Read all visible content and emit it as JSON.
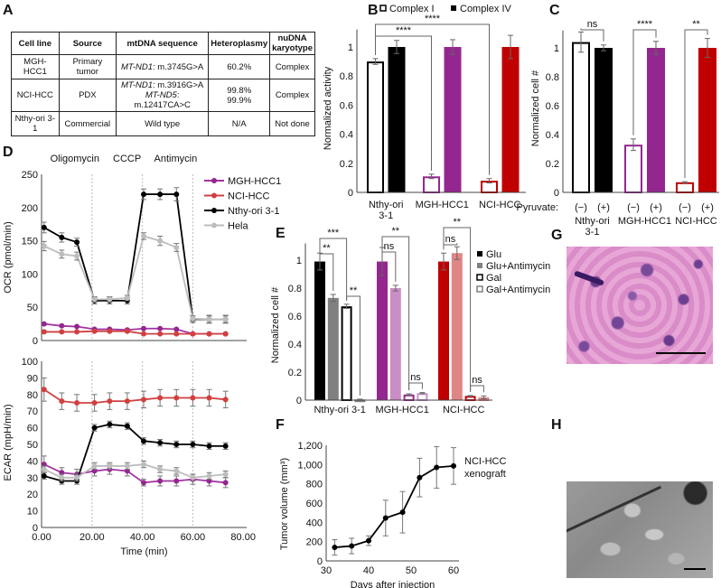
{
  "panels": [
    "A",
    "B",
    "C",
    "D",
    "E",
    "F",
    "G",
    "H"
  ],
  "table": {
    "headers": [
      "Cell line",
      "Source",
      "mtDNA sequence",
      "Heteroplasmy",
      "nuDNA karyotype"
    ],
    "rows": [
      {
        "cell_line": "MGH-HCC1",
        "source": "Primary tumor",
        "gene1": "MT-ND1",
        "mut1": ": m.3745G>A",
        "gene2": "",
        "mut2": "",
        "het1": "60.2%",
        "het2": "",
        "karyotype": "Complex"
      },
      {
        "cell_line": "NCI-HCC",
        "source": "PDX",
        "gene1": "MT-ND1",
        "mut1": ": m.3916G>A",
        "gene2": "MT-ND5",
        "mut2": ": m.12417CA>C",
        "het1": "99.8%",
        "het2": "99.9%",
        "karyotype": "Complex"
      },
      {
        "cell_line": "Nthy-ori 3-1",
        "source": "Commercial",
        "gene1": "",
        "mut1": "Wild type",
        "gene2": "",
        "mut2": "",
        "het1": "N/A",
        "het2": "",
        "karyotype": "Not done"
      }
    ]
  },
  "colors": {
    "black": "#000000",
    "gray": "#808080",
    "purple": "#93278f",
    "light_purple": "#c98ec6",
    "red": "#c00000",
    "pink": "#e08585",
    "hela": "#bdbdbd",
    "mgh_line": "#a333a0",
    "nci_line": "#d04040",
    "error": "#666666"
  },
  "images": {
    "G": "H&E histology",
    "H": "electron micrograph"
  },
  "chart_data": [
    {
      "id": "B",
      "type": "bar",
      "ylabel": "Normalized activity",
      "ylim": [
        0,
        1.12
      ],
      "yticks": [
        0,
        0.2,
        0.4,
        0.6,
        0.8,
        1
      ],
      "ytick_labels": [
        "0",
        "0.2",
        "0.4",
        "0.6",
        "0.8",
        "1"
      ],
      "categories": [
        "Nthy-ori 3-1",
        "MGH-HCC1",
        "NCI-HCC"
      ],
      "series": [
        {
          "name": "Complex I",
          "values": [
            0.9,
            0.11,
            0.08
          ],
          "errors": [
            0.02,
            0.015,
            0.015
          ]
        },
        {
          "name": "Complex IV",
          "values": [
            1.0,
            1.0,
            1.0
          ],
          "errors": [
            0.045,
            0.05,
            0.08
          ]
        }
      ],
      "legend": "top",
      "annotations": [
        {
          "label": "****",
          "a": [
            0,
            0
          ],
          "b": [
            2,
            0
          ]
        },
        {
          "label": "****",
          "a": [
            0,
            0
          ],
          "b": [
            1,
            0
          ]
        }
      ]
    },
    {
      "id": "C",
      "type": "bar",
      "ylabel": "Normalized cell #",
      "ylim": [
        0,
        1.12
      ],
      "yticks": [
        0,
        0.2,
        0.4,
        0.6,
        0.8,
        1
      ],
      "ytick_labels": [
        "0",
        "0.2",
        "0.4",
        "0.6",
        "0.8",
        "1"
      ],
      "xlabel_prefix": "Pyruvate:",
      "categories": [
        "Nthy-ori 3-1",
        "MGH-HCC1",
        "NCI-HCC"
      ],
      "series": [
        {
          "name": "(−)",
          "values": [
            1.04,
            0.33,
            0.07
          ],
          "errors": [
            0.07,
            0.04,
            0.004
          ]
        },
        {
          "name": "(+)",
          "values": [
            1.0,
            1.0,
            1.0
          ],
          "errors": [
            0.02,
            0.045,
            0.065
          ]
        }
      ],
      "annotations": [
        {
          "label": "ns",
          "a": [
            0,
            0
          ],
          "b": [
            0,
            1
          ]
        },
        {
          "label": "****",
          "a": [
            1,
            0
          ],
          "b": [
            1,
            1
          ]
        },
        {
          "label": "**",
          "a": [
            2,
            0
          ],
          "b": [
            2,
            1
          ]
        }
      ]
    },
    {
      "id": "D-OCR",
      "type": "line",
      "ylabel": "OCR (pmol/min)",
      "ylim": [
        0,
        250
      ],
      "xlim": [
        0,
        80
      ],
      "yticks": [
        0,
        50,
        100,
        150,
        200,
        250
      ],
      "ytick_labels": [
        "0",
        "50",
        "100",
        "150",
        "200",
        "250"
      ],
      "injections": [
        {
          "label": "Oligomycin",
          "x": 20
        },
        {
          "label": "CCCP",
          "x": 40
        },
        {
          "label": "Antimycin",
          "x": 60
        }
      ],
      "legend": "top-right",
      "x": [
        1,
        8,
        14,
        21,
        27,
        34,
        40.5,
        47,
        53.5,
        60,
        66.5,
        73
      ],
      "series": [
        {
          "name": "MGH-HCC1",
          "values": [
            25,
            22,
            21,
            17,
            17,
            16,
            18,
            18,
            17,
            10,
            10,
            10
          ],
          "errors": [
            1,
            1,
            1,
            1,
            1,
            1,
            1,
            1,
            1,
            1,
            1,
            1
          ]
        },
        {
          "name": "NCI-HCC",
          "values": [
            13,
            13,
            13,
            14,
            14,
            14,
            10,
            10,
            10,
            10,
            10,
            10
          ],
          "errors": [
            1,
            1,
            1,
            1,
            1,
            1,
            1,
            1,
            1,
            1,
            1,
            1
          ]
        },
        {
          "name": "Nthy-ori 3-1",
          "values": [
            170,
            155,
            148,
            60,
            60,
            60,
            220,
            220,
            220,
            32,
            32,
            32
          ],
          "errors": [
            8,
            7,
            6,
            5,
            5,
            5,
            8,
            8,
            10,
            5,
            6,
            6
          ]
        },
        {
          "name": "Hela",
          "values": [
            142,
            130,
            127,
            62,
            62,
            64,
            157,
            150,
            140,
            33,
            32,
            32
          ],
          "errors": [
            7,
            6,
            6,
            4,
            4,
            4,
            5,
            7,
            6,
            4,
            5,
            5
          ]
        }
      ]
    },
    {
      "id": "D-ECAR",
      "type": "line",
      "ylabel": "ECAR (mpH/min)",
      "xlabel": "Time (min)",
      "ylim": [
        0,
        100
      ],
      "xlim": [
        0,
        80
      ],
      "yticks": [
        0,
        10,
        20,
        30,
        40,
        50,
        60,
        70,
        80,
        90,
        100
      ],
      "ytick_labels": [
        "0",
        "10",
        "20",
        "30",
        "40",
        "50",
        "60",
        "70",
        "80",
        "90",
        "100"
      ],
      "xticks": [
        0,
        20,
        40,
        60,
        80
      ],
      "xtick_labels": [
        "0.00",
        "20.00",
        "40.00",
        "60.00",
        "80.00"
      ],
      "x": [
        1,
        8,
        14,
        21,
        27,
        34,
        40.5,
        47,
        53.5,
        60,
        66.5,
        73
      ],
      "series": [
        {
          "name": "MGH-HCC1",
          "values": [
            38,
            33,
            32,
            34,
            35,
            34,
            27,
            28,
            28,
            29,
            28,
            27
          ],
          "errors": [
            5,
            3,
            3,
            3,
            3,
            3,
            2,
            3,
            3,
            3,
            3,
            3
          ]
        },
        {
          "name": "NCI-HCC",
          "values": [
            83,
            76,
            75,
            75,
            76,
            76,
            77,
            78,
            78,
            78,
            78,
            77
          ],
          "errors": [
            7,
            5,
            5,
            5,
            5,
            5,
            5,
            5,
            5,
            5,
            5,
            5
          ]
        },
        {
          "name": "Nthy-ori 3-1",
          "values": [
            31,
            28,
            28,
            60,
            62,
            61,
            52,
            51,
            50,
            50,
            49,
            49
          ],
          "errors": [
            2,
            2,
            2,
            2,
            2,
            2,
            2,
            2,
            2,
            2,
            2,
            2
          ]
        },
        {
          "name": "Hela",
          "values": [
            35,
            30,
            30,
            37,
            37,
            37,
            38,
            35,
            34,
            30,
            31,
            32
          ],
          "errors": [
            2,
            2,
            2,
            2,
            2,
            2,
            2,
            2,
            2,
            2,
            2,
            2
          ]
        }
      ]
    },
    {
      "id": "E",
      "type": "bar",
      "ylabel": "Normalized cell #",
      "ylim": [
        0,
        1.12
      ],
      "yticks": [
        0,
        0.2,
        0.4,
        0.6,
        0.8,
        1
      ],
      "ytick_labels": [
        "0",
        "0.2",
        "0.4",
        "0.6",
        "0.8",
        "1"
      ],
      "categories": [
        "Nthy-ori 3-1",
        "MGH-HCC1",
        "NCI-HCC"
      ],
      "legend": "right",
      "series": [
        {
          "name": "Glu",
          "values": [
            0.99,
            0.99,
            0.99
          ],
          "errors": [
            0.06,
            0.1,
            0.06
          ]
        },
        {
          "name": "Glu+Antimycin",
          "values": [
            0.73,
            0.8,
            1.05
          ],
          "errors": [
            0.025,
            0.02,
            0.045
          ]
        },
        {
          "name": "Gal",
          "values": [
            0.67,
            0.04,
            0.03
          ],
          "errors": [
            0.015,
            0.005,
            0.003
          ]
        },
        {
          "name": "Gal+Antimycin",
          "values": [
            0.005,
            0.05,
            0.02
          ],
          "errors": [
            0.002,
            0.004,
            0.01
          ]
        }
      ],
      "annotations": [
        {
          "label": "***",
          "a": [
            0,
            0
          ],
          "b": [
            0,
            2
          ]
        },
        {
          "label": "**",
          "a": [
            0,
            0
          ],
          "b": [
            0,
            1
          ]
        },
        {
          "label": "**",
          "a": [
            0,
            2
          ],
          "b": [
            0,
            3
          ]
        },
        {
          "label": "**",
          "a": [
            1,
            0
          ],
          "b": [
            1,
            2
          ]
        },
        {
          "label": "ns",
          "a": [
            1,
            0
          ],
          "b": [
            1,
            1
          ]
        },
        {
          "label": "ns",
          "a": [
            1,
            2
          ],
          "b": [
            1,
            3
          ]
        },
        {
          "label": "**",
          "a": [
            2,
            0
          ],
          "b": [
            2,
            2
          ]
        },
        {
          "label": "ns",
          "a": [
            2,
            0
          ],
          "b": [
            2,
            1
          ]
        },
        {
          "label": "ns",
          "a": [
            2,
            2
          ],
          "b": [
            2,
            3
          ]
        }
      ]
    },
    {
      "id": "F",
      "type": "line",
      "ylabel": "Tumor volume (mm³)",
      "xlabel": "Days after injection",
      "ylim": [
        0,
        1200
      ],
      "xlim": [
        30,
        60
      ],
      "yticks": [
        0,
        200,
        400,
        600,
        800,
        1000,
        1200
      ],
      "ytick_labels": [
        "0",
        "200",
        "400",
        "600",
        "800",
        "1,000",
        "1,200"
      ],
      "xticks": [
        30,
        40,
        50,
        60
      ],
      "xtick_labels": [
        "30",
        "40",
        "50",
        "60"
      ],
      "annotation_lines": [
        "NCI-HCC",
        "xenograft"
      ],
      "x": [
        32,
        36,
        40,
        44,
        48,
        52,
        56,
        60
      ],
      "series": [
        {
          "name": "NCI-HCC xenograft",
          "values": [
            140,
            155,
            210,
            445,
            505,
            865,
            970,
            985
          ],
          "errors": [
            80,
            80,
            50,
            185,
            215,
            200,
            215,
            190
          ]
        }
      ]
    }
  ]
}
